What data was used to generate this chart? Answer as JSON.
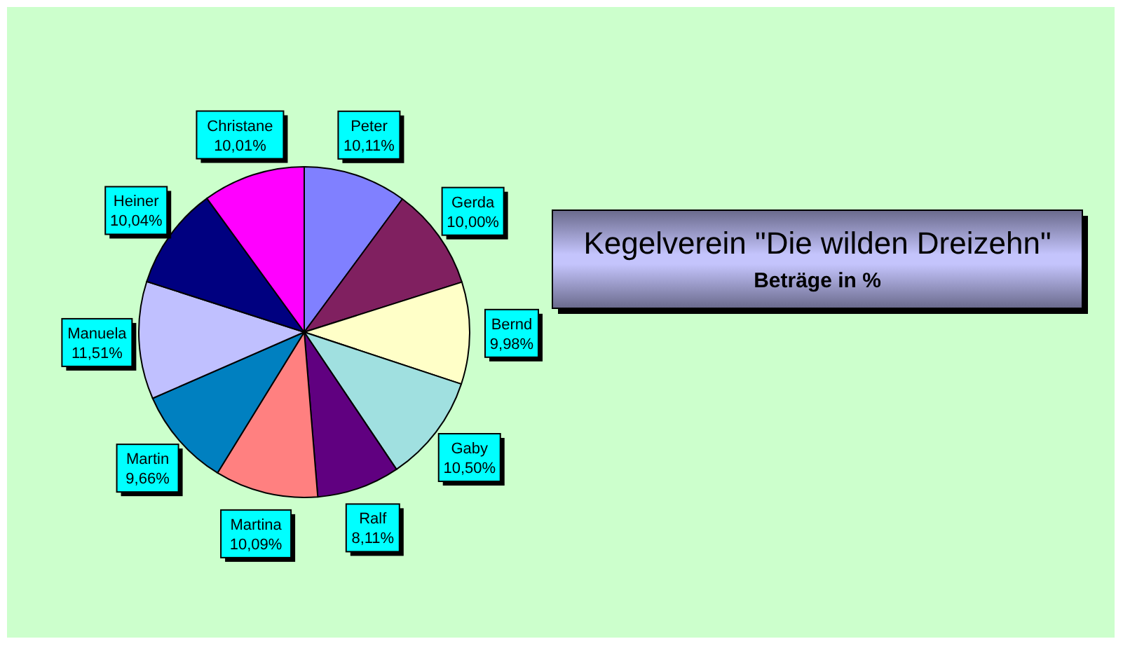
{
  "chart_data": {
    "type": "pie",
    "title": "Kegelverein \"Die wilden Dreizehn\"",
    "subtitle": "Beträge in %",
    "categories": [
      "Peter",
      "Gerda",
      "Bernd",
      "Gaby",
      "Ralf",
      "Martina",
      "Martin",
      "Manuela",
      "Heiner",
      "Christane"
    ],
    "values": [
      10.11,
      10.0,
      9.98,
      10.5,
      8.11,
      10.09,
      9.66,
      11.51,
      10.04,
      10.01
    ],
    "colors": [
      "#8080ff",
      "#802060",
      "#ffffc8",
      "#a0e0e0",
      "#600080",
      "#ff8080",
      "#0080c0",
      "#c0c0ff",
      "#000080",
      "#ff00ff"
    ],
    "value_labels": [
      "10,11%",
      "10,00%",
      "9,98%",
      "10,50%",
      "8,11%",
      "10,09%",
      "9,66%",
      "11,51%",
      "10,04%",
      "10,01%"
    ]
  }
}
